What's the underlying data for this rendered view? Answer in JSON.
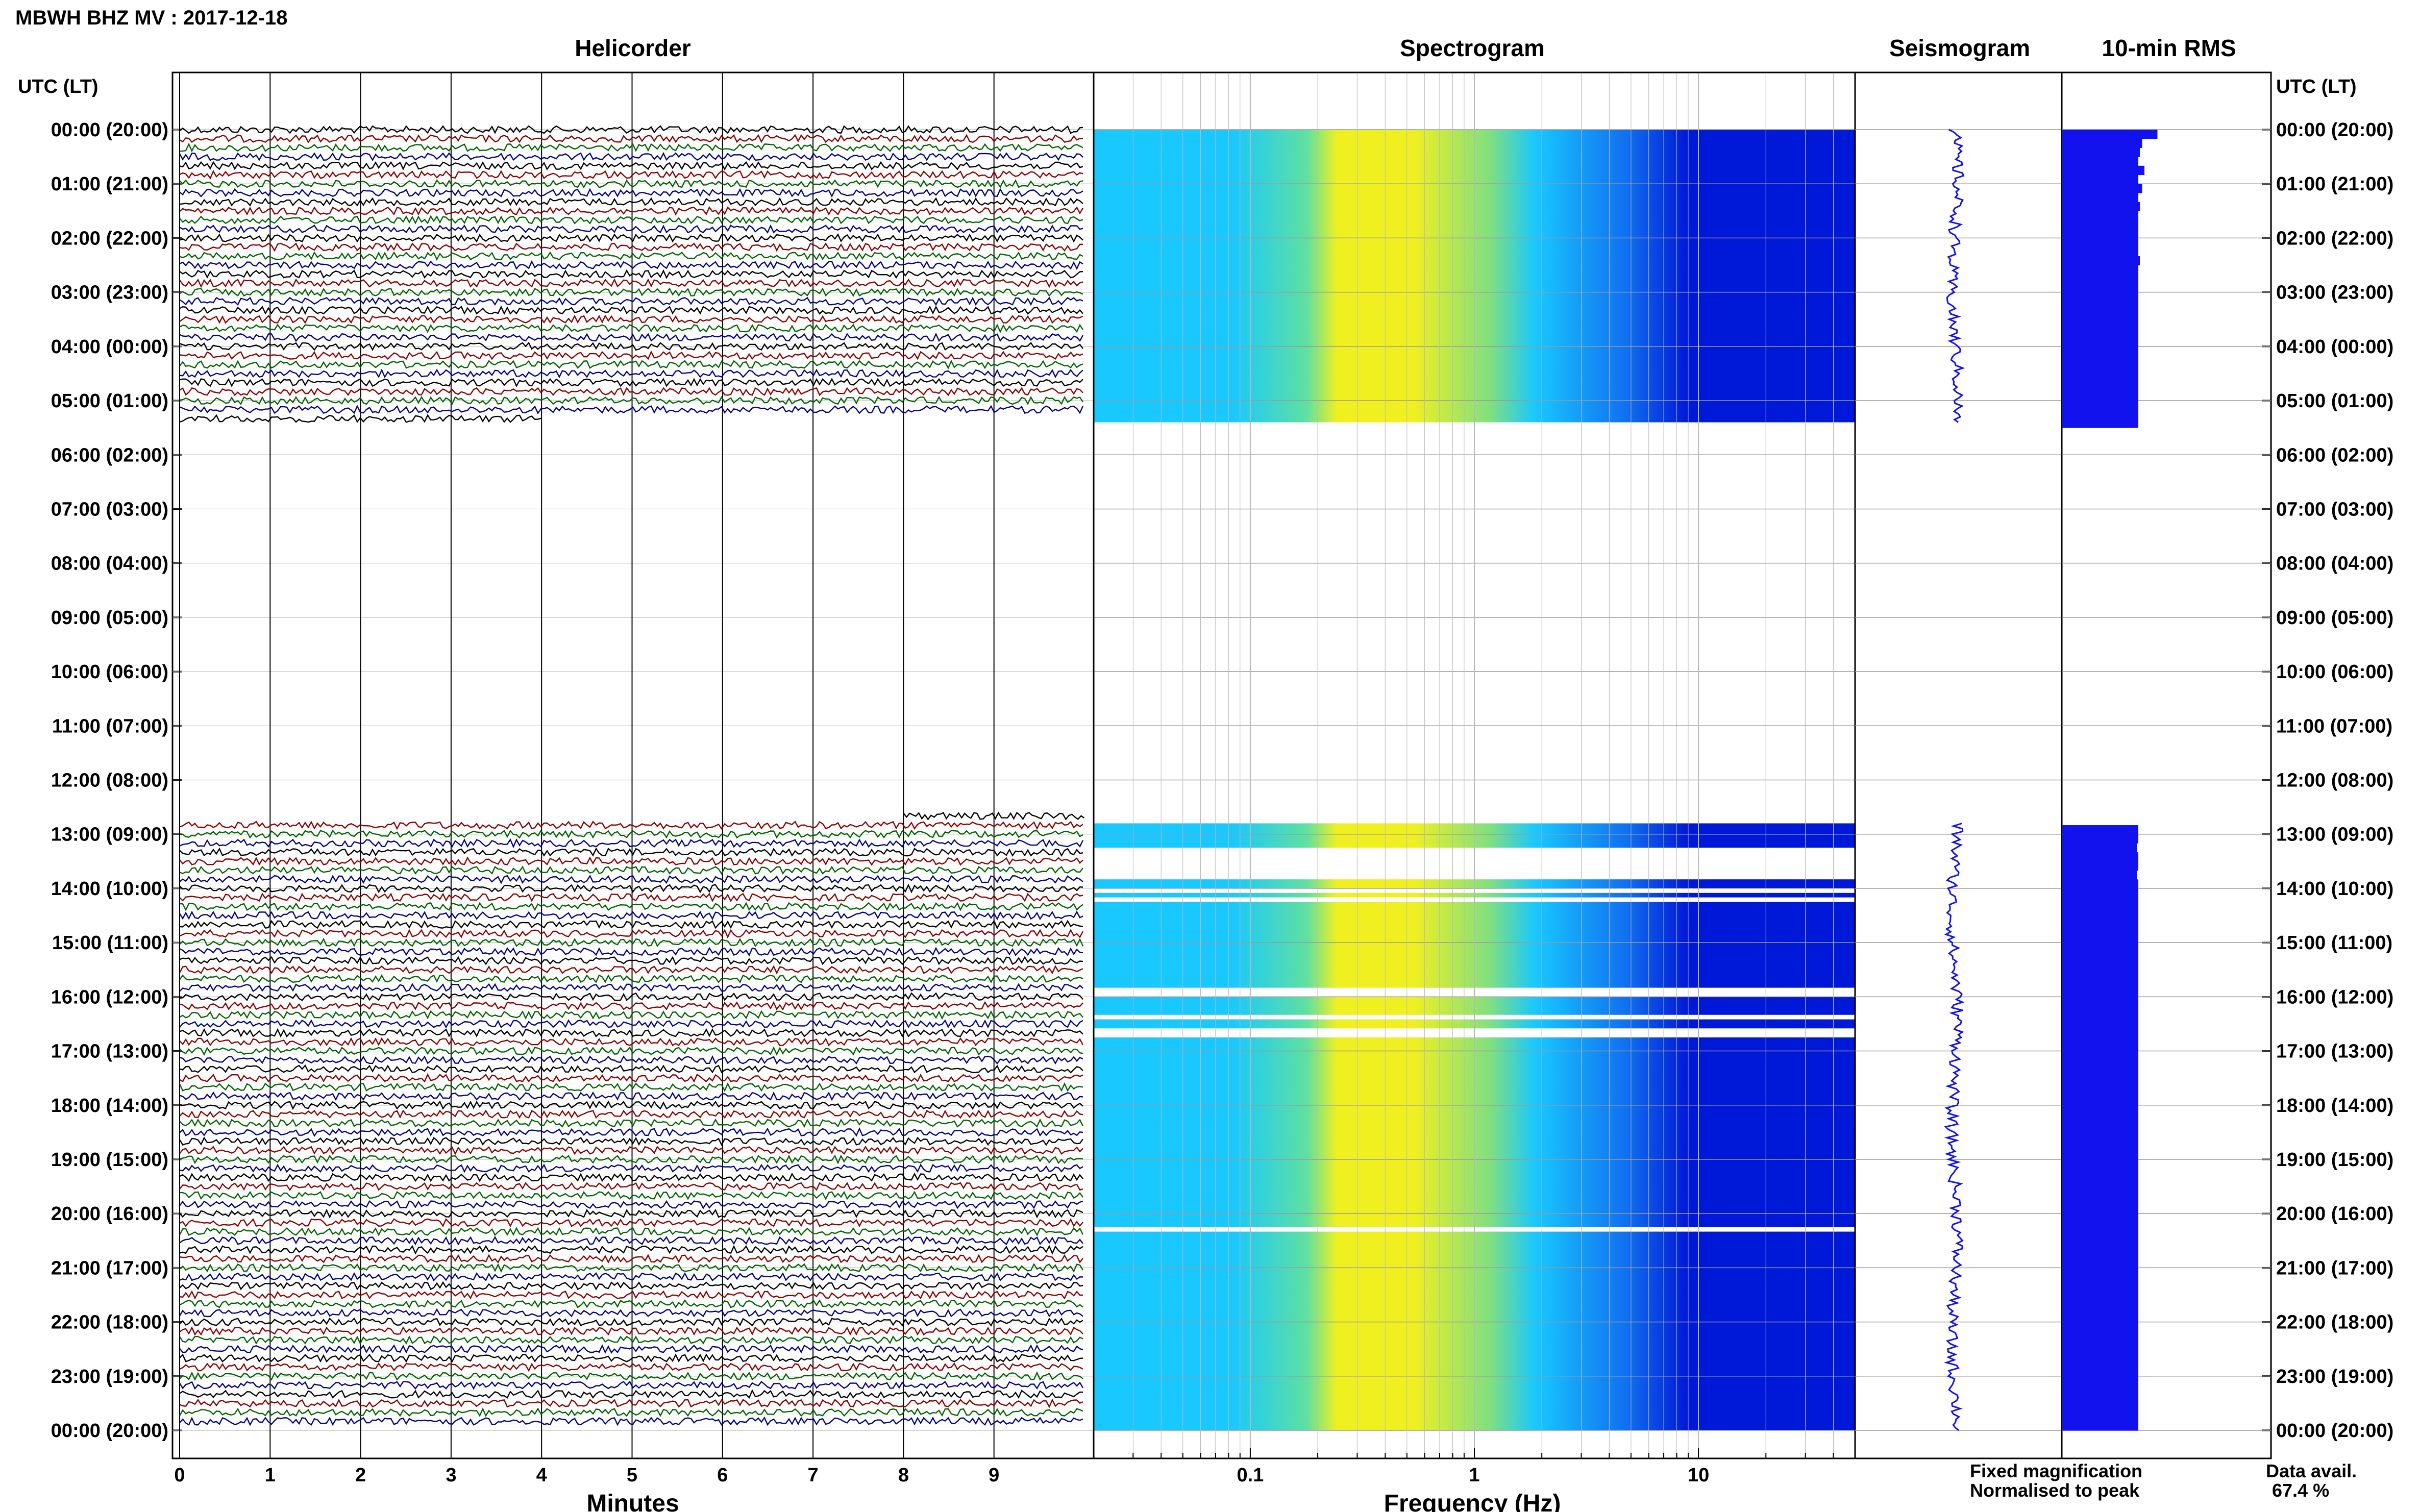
{
  "title": "MBWH BHZ MV : 2017-12-18",
  "panels": {
    "helicorder": "Helicorder",
    "spectrogram": "Spectrogram",
    "seismogram": "Seismogram",
    "rms": "10-min RMS"
  },
  "time_axis_label": "UTC (LT)",
  "hour_labels": [
    "00:00 (20:00)",
    "01:00 (21:00)",
    "02:00 (22:00)",
    "03:00 (23:00)",
    "04:00 (00:00)",
    "05:00 (01:00)",
    "06:00 (02:00)",
    "07:00 (03:00)",
    "08:00 (04:00)",
    "09:00 (05:00)",
    "10:00 (06:00)",
    "11:00 (07:00)",
    "12:00 (08:00)",
    "13:00 (09:00)",
    "14:00 (10:00)",
    "15:00 (11:00)",
    "16:00 (12:00)",
    "17:00 (13:00)",
    "18:00 (14:00)",
    "19:00 (15:00)",
    "20:00 (16:00)",
    "21:00 (17:00)",
    "22:00 (18:00)",
    "23:00 (19:00)",
    "00:00 (20:00)"
  ],
  "minutes_axis": {
    "label": "Minutes",
    "ticks": [
      "0",
      "1",
      "2",
      "3",
      "4",
      "5",
      "6",
      "7",
      "8",
      "9"
    ]
  },
  "frequency_axis": {
    "label": "Frequency (Hz)",
    "ticks": [
      "0.1",
      "1",
      "10"
    ],
    "scale": "log"
  },
  "legend": {
    "fixed": "Fixed magnification",
    "fixed_color": "#0000ff",
    "normalised": "Normalised to peak",
    "normalised_color": "#ff0000"
  },
  "data_availability": {
    "label": "Data avail.",
    "value": "67.4 %"
  },
  "trace_colors": [
    "#000000",
    "#8b0000",
    "#006400",
    "#00008b"
  ],
  "spectrogram_colors": {
    "low": "#0018d8",
    "mid": "#18c8ff",
    "high": "#f0f020"
  },
  "chart_data": {
    "type": "heatmap",
    "title": "MBWH BHZ MV : 2017-12-18",
    "time_range_utc": [
      "00:00",
      "24:00"
    ],
    "helicorder": {
      "xlabel": "Minutes",
      "xlim": [
        0,
        10
      ],
      "rows_per_hour": 6,
      "data_segments_utc": [
        {
          "start": "00:00",
          "end": "05:24"
        },
        {
          "start": "12:48",
          "end": "24:00"
        }
      ]
    },
    "spectrogram": {
      "xlabel": "Frequency (Hz)",
      "xscale": "log",
      "xlim": [
        0.02,
        50
      ],
      "peak_band_hz": [
        0.15,
        0.5
      ],
      "gaps_utc": [
        [
          "13:15",
          "13:50"
        ],
        [
          "14:00",
          "14:05"
        ],
        [
          "14:10",
          "14:15"
        ],
        [
          "15:50",
          "16:00"
        ],
        [
          "16:20",
          "16:25"
        ],
        [
          "16:35",
          "16:45"
        ],
        [
          "20:15",
          "20:20"
        ]
      ]
    },
    "rms_10min": {
      "segments": [
        {
          "start": "00:00",
          "values": [
            1.25,
            1.05,
            1.02,
            1.0,
            1.08,
            1.0,
            1.05,
            1.0,
            1.02,
            1.0,
            1.0,
            1.0,
            1.0,
            1.0,
            1.02,
            1.0,
            1.0,
            1.0,
            1.0,
            1.0,
            1.0,
            1.0,
            1.0,
            1.0,
            1.0,
            1.0,
            1.0,
            1.0,
            1.0,
            1.0,
            1.0,
            1.0,
            1.0
          ]
        },
        {
          "start": "12:50",
          "values": [
            1.0,
            1.0,
            0.98,
            1.0,
            1.0,
            0.98,
            1.0,
            1.0,
            1.0,
            1.0,
            1.0,
            1.0,
            1.0,
            1.0,
            1.0,
            1.0,
            1.0,
            1.0,
            1.0,
            1.0,
            1.0,
            1.0,
            1.0,
            1.0,
            1.0,
            1.0,
            1.0,
            1.0,
            1.0,
            1.0,
            1.0,
            1.0,
            1.0,
            1.0,
            1.0,
            1.0,
            1.0,
            1.0,
            1.0,
            1.0,
            1.0,
            1.0,
            1.0,
            1.0,
            1.0,
            1.0,
            1.0,
            1.0,
            1.0,
            1.0,
            1.0,
            1.0,
            1.0,
            1.0,
            1.0,
            1.0,
            1.0,
            1.0,
            1.0,
            1.0,
            1.0,
            1.0,
            1.0,
            1.0,
            1.0,
            1.0,
            1.0
          ]
        }
      ]
    }
  }
}
